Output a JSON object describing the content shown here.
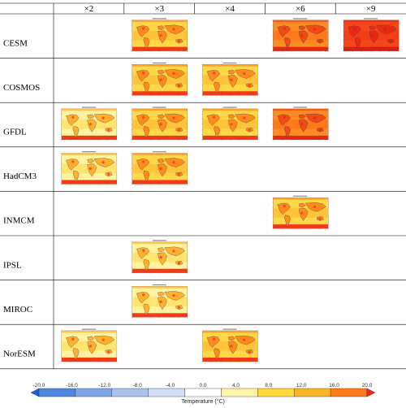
{
  "columns": [
    "×2",
    "×3",
    "×4",
    "×6",
    "×9"
  ],
  "rows": [
    {
      "label": "CESM",
      "maps": [
        null,
        "warm",
        null,
        "hot",
        "hotter"
      ]
    },
    {
      "label": "COSMOS",
      "maps": [
        null,
        "warm",
        "warm",
        null,
        null
      ]
    },
    {
      "label": "GFDL",
      "maps": [
        "mild",
        "warm",
        "warm",
        "hot",
        null
      ]
    },
    {
      "label": "HadCM3",
      "maps": [
        "mild",
        "warm",
        null,
        null,
        null
      ]
    },
    {
      "label": "INMCM",
      "maps": [
        null,
        null,
        null,
        "warm",
        null
      ]
    },
    {
      "label": "IPSL",
      "maps": [
        null,
        "mild",
        null,
        null,
        null
      ]
    },
    {
      "label": "MIROC",
      "maps": [
        null,
        "mild",
        null,
        null,
        null
      ]
    },
    {
      "label": "NorESM",
      "maps": [
        "mild",
        null,
        "warm",
        null,
        null
      ]
    }
  ],
  "colorbar": {
    "title": "Temperature (°C)",
    "ticks": [
      "-20.0",
      "-16.0",
      "-12.0",
      "-8.0",
      "-4.0",
      "0.0",
      "4.0",
      "8.0",
      "12.0",
      "16.0",
      "20.0"
    ],
    "colors": [
      "#1b5fd6",
      "#4f86e0",
      "#7ea5e6",
      "#a9c3ec",
      "#d3e0f4",
      "#ffffff",
      "#fff4a8",
      "#ffd83a",
      "#ffb428",
      "#ff7a1a",
      "#ef2a14"
    ]
  },
  "palettes": {
    "mild": {
      "bg": "#fff2a0",
      "mid": "#ffd84a",
      "hot": "#ffb02e",
      "edge": "#f03a18"
    },
    "warm": {
      "bg": "#ffd848",
      "mid": "#ffb52e",
      "hot": "#ff8a1e",
      "edge": "#f03a18"
    },
    "hot": {
      "bg": "#ff8c20",
      "mid": "#ff6a18",
      "hot": "#f04a16",
      "edge": "#e02a12"
    },
    "hotter": {
      "bg": "#f5471a",
      "mid": "#ef3616",
      "hot": "#e82a12",
      "edge": "#d81e10"
    }
  }
}
